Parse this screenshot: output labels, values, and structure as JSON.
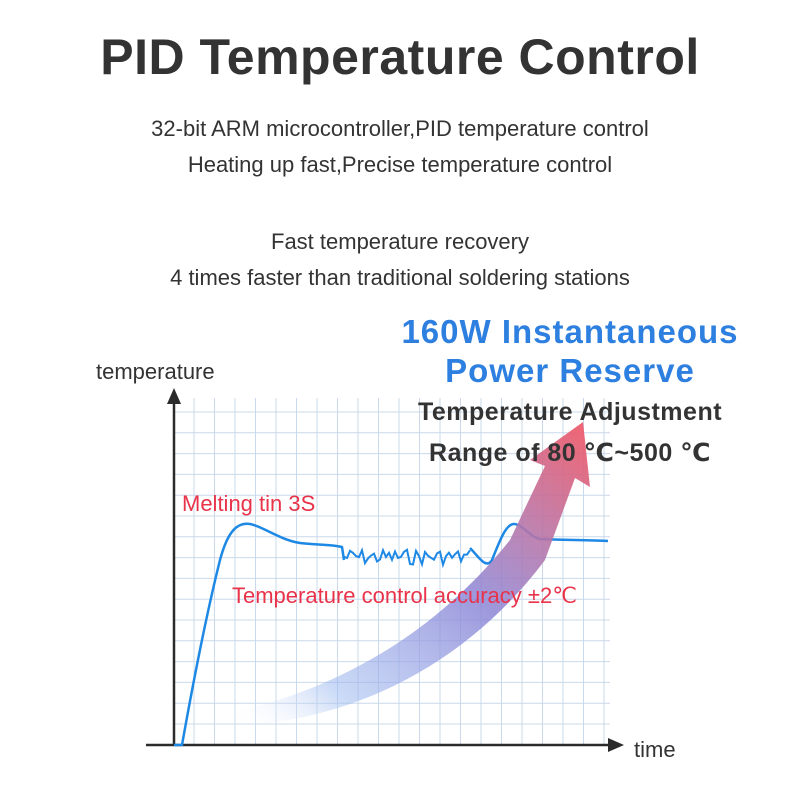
{
  "header": {
    "title": "PID Temperature Control",
    "line1": "32-bit ARM microcontroller,PID temperature control",
    "line2": "Heating up fast,Precise temperature control",
    "line3": "Fast temperature recovery",
    "line4": "4 times faster than traditional soldering stations"
  },
  "callouts": {
    "power_line1": "160W Instantaneous",
    "power_line2": "Power Reserve",
    "range_line1": "Temperature Adjustment",
    "range_line2": "Range of 80 ℃~500 ℃"
  },
  "diagram": {
    "y_axis_label": "temperature",
    "x_axis_label": "time",
    "melting_label": "Melting tin 3S",
    "accuracy_label": "Temperature control accuracy ±2℃"
  },
  "colors": {
    "curve": "#1e88e5",
    "grid": "#c9d8ea",
    "red_text": "#e8334a",
    "blue_text": "#2d7fe0",
    "arrow_start": "#7fa8e8",
    "arrow_end": "#f25c68"
  }
}
